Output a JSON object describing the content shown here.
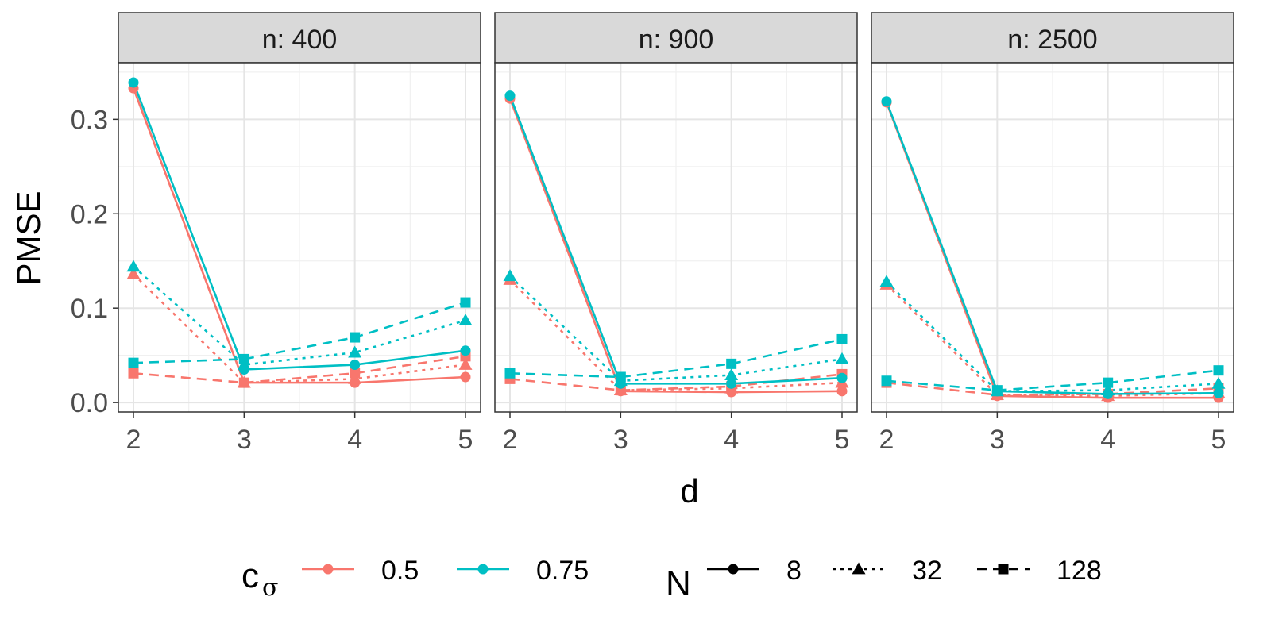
{
  "chart_data": {
    "type": "line",
    "ylabel": "PMSE",
    "xlabel": "d",
    "x": [
      2,
      3,
      4,
      5
    ],
    "x_ticks": [
      "2",
      "3",
      "4",
      "5"
    ],
    "ylim": [
      -0.01,
      0.36
    ],
    "y_ticks": [
      {
        "value": 0.0,
        "label": "0.0"
      },
      {
        "value": 0.1,
        "label": "0.1"
      },
      {
        "value": 0.2,
        "label": "0.2"
      },
      {
        "value": 0.3,
        "label": "0.3"
      }
    ],
    "grid": true,
    "legend": {
      "position": "bottom",
      "color_title": "c",
      "color_title_sub": "σ",
      "color_items": [
        {
          "label": "0.5",
          "color": "#F8766D"
        },
        {
          "label": "0.75",
          "color": "#00BFC4"
        }
      ],
      "linetype_title": "N",
      "linetype_items": [
        {
          "label": "8",
          "shape": "circle",
          "dash": "solid"
        },
        {
          "label": "32",
          "shape": "triangle",
          "dash": "dotted"
        },
        {
          "label": "128",
          "shape": "square",
          "dash": "dashed"
        }
      ]
    },
    "panels": [
      {
        "title": "n: 400",
        "series": [
          {
            "c_sigma": "0.5",
            "N": "8",
            "values": [
              0.333,
              0.021,
              0.021,
              0.027
            ]
          },
          {
            "c_sigma": "0.5",
            "N": "32",
            "values": [
              0.136,
              0.021,
              0.025,
              0.04
            ]
          },
          {
            "c_sigma": "0.5",
            "N": "128",
            "values": [
              0.031,
              0.021,
              0.031,
              0.049
            ]
          },
          {
            "c_sigma": "0.75",
            "N": "8",
            "values": [
              0.339,
              0.035,
              0.04,
              0.055
            ]
          },
          {
            "c_sigma": "0.75",
            "N": "32",
            "values": [
              0.144,
              0.04,
              0.053,
              0.087
            ]
          },
          {
            "c_sigma": "0.75",
            "N": "128",
            "values": [
              0.042,
              0.046,
              0.069,
              0.106
            ]
          }
        ]
      },
      {
        "title": "n: 900",
        "series": [
          {
            "c_sigma": "0.5",
            "N": "8",
            "values": [
              0.322,
              0.012,
              0.011,
              0.012
            ]
          },
          {
            "c_sigma": "0.5",
            "N": "32",
            "values": [
              0.13,
              0.013,
              0.015,
              0.021
            ]
          },
          {
            "c_sigma": "0.5",
            "N": "128",
            "values": [
              0.025,
              0.013,
              0.017,
              0.03
            ]
          },
          {
            "c_sigma": "0.75",
            "N": "8",
            "values": [
              0.325,
              0.02,
              0.02,
              0.026
            ]
          },
          {
            "c_sigma": "0.75",
            "N": "32",
            "values": [
              0.134,
              0.023,
              0.029,
              0.046
            ]
          },
          {
            "c_sigma": "0.75",
            "N": "128",
            "values": [
              0.031,
              0.027,
              0.041,
              0.067
            ]
          }
        ]
      },
      {
        "title": "n: 2500",
        "series": [
          {
            "c_sigma": "0.5",
            "N": "8",
            "values": [
              0.318,
              0.007,
              0.005,
              0.005
            ]
          },
          {
            "c_sigma": "0.5",
            "N": "32",
            "values": [
              0.125,
              0.008,
              0.007,
              0.01
            ]
          },
          {
            "c_sigma": "0.5",
            "N": "128",
            "values": [
              0.021,
              0.008,
              0.009,
              0.015
            ]
          },
          {
            "c_sigma": "0.75",
            "N": "8",
            "values": [
              0.319,
              0.012,
              0.009,
              0.01
            ]
          },
          {
            "c_sigma": "0.75",
            "N": "32",
            "values": [
              0.128,
              0.012,
              0.013,
              0.02
            ]
          },
          {
            "c_sigma": "0.75",
            "N": "128",
            "values": [
              0.023,
              0.013,
              0.021,
              0.034
            ]
          }
        ]
      }
    ]
  }
}
